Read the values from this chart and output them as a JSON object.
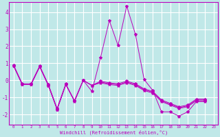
{
  "bg_color": "#c0e8e8",
  "grid_color": "#ffffff",
  "line_color": "#bb00bb",
  "xlim": [
    -0.5,
    23.5
  ],
  "ylim": [
    -2.6,
    4.6
  ],
  "xticks": [
    0,
    1,
    2,
    3,
    4,
    5,
    6,
    7,
    8,
    9,
    10,
    11,
    12,
    13,
    14,
    15,
    16,
    17,
    18,
    19,
    20,
    21,
    22,
    23
  ],
  "yticks": [
    -2,
    -1,
    0,
    1,
    2,
    3,
    4
  ],
  "xlabel": "Windchill (Refroidissement éolien,°C)",
  "y_spike": [
    0.9,
    -0.2,
    -0.2,
    0.85,
    -0.25,
    -1.65,
    -0.2,
    -1.25,
    0.0,
    -0.65,
    1.35,
    3.5,
    2.05,
    4.35,
    2.7,
    0.05,
    -0.6,
    -1.85,
    -1.85,
    -2.1,
    -1.85,
    -1.25,
    -1.25
  ],
  "y_flat1": [
    0.85,
    -0.25,
    -0.25,
    0.8,
    -0.3,
    -1.7,
    -0.25,
    -1.2,
    0.0,
    -0.3,
    -0.15,
    -0.25,
    -0.3,
    -0.15,
    -0.3,
    -0.6,
    -0.75,
    -1.25,
    -1.45,
    -1.65,
    -1.55,
    -1.2,
    -1.2
  ],
  "y_flat2": [
    0.85,
    -0.25,
    -0.25,
    0.8,
    -0.3,
    -1.7,
    -0.25,
    -1.2,
    0.0,
    -0.3,
    -0.1,
    -0.2,
    -0.25,
    -0.1,
    -0.25,
    -0.55,
    -0.7,
    -1.2,
    -1.4,
    -1.6,
    -1.5,
    -1.15,
    -1.15
  ],
  "y_lin": [
    0.85,
    -0.25,
    -0.25,
    0.8,
    -0.3,
    -1.7,
    -0.25,
    -1.2,
    0.0,
    -0.3,
    -0.05,
    -0.15,
    -0.2,
    -0.05,
    -0.2,
    -0.5,
    -0.65,
    -1.15,
    -1.35,
    -1.55,
    -1.45,
    -1.1,
    -1.1
  ]
}
